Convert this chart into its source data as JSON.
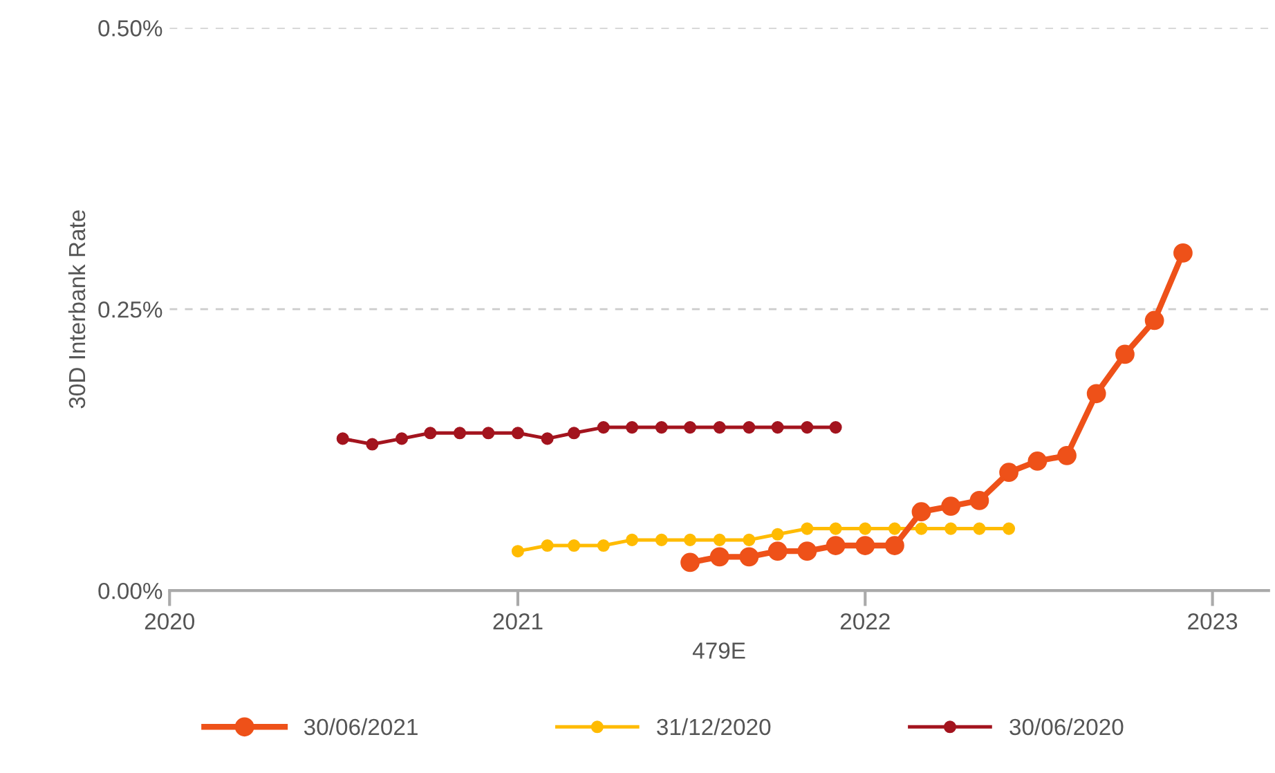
{
  "chart_data": {
    "type": "line",
    "xlabel": "479E",
    "ylabel": "30D Interbank Rate",
    "xlim": [
      "2020",
      "2023-03"
    ],
    "xticks": [
      "2020",
      "2021",
      "2022",
      "2023"
    ],
    "ylim": [
      0,
      0.5
    ],
    "yticks": [
      {
        "value": 0,
        "label": "0.00%"
      },
      {
        "value": 0.25,
        "label": "0.25%"
      },
      {
        "value": 0.5,
        "label": "0.50%"
      }
    ],
    "grid": "y",
    "legend": "bottom",
    "marker": "circle",
    "line_style": "solid",
    "series": [
      {
        "name": "30/06/2021",
        "color": "#ee5119",
        "x": [
          "2021-07",
          "2021-08",
          "2021-09",
          "2021-10",
          "2021-11",
          "2021-12",
          "2022-01",
          "2022-02",
          "2022-03",
          "2022-04",
          "2022-05",
          "2022-06",
          "2022-07",
          "2022-08",
          "2022-09",
          "2022-10",
          "2022-11",
          "2022-12"
        ],
        "values": [
          0.025,
          0.03,
          0.03,
          0.035,
          0.035,
          0.04,
          0.04,
          0.04,
          0.07,
          0.075,
          0.08,
          0.105,
          0.115,
          0.12,
          0.175,
          0.21,
          0.24,
          0.3
        ]
      },
      {
        "name": "31/12/2020",
        "color": "#ffbb00",
        "x": [
          "2021-01",
          "2021-02",
          "2021-03",
          "2021-04",
          "2021-05",
          "2021-06",
          "2021-07",
          "2021-08",
          "2021-09",
          "2021-10",
          "2021-11",
          "2021-12",
          "2022-01",
          "2022-02",
          "2022-03",
          "2022-04",
          "2022-05",
          "2022-06"
        ],
        "values": [
          0.035,
          0.04,
          0.04,
          0.04,
          0.045,
          0.045,
          0.045,
          0.045,
          0.045,
          0.05,
          0.055,
          0.055,
          0.055,
          0.055,
          0.055,
          0.055,
          0.055,
          0.055
        ]
      },
      {
        "name": "30/06/2020",
        "color": "#a3141e",
        "x": [
          "2020-07",
          "2020-08",
          "2020-09",
          "2020-10",
          "2020-11",
          "2020-12",
          "2021-01",
          "2021-02",
          "2021-03",
          "2021-04",
          "2021-05",
          "2021-06",
          "2021-07",
          "2021-08",
          "2021-09",
          "2021-10",
          "2021-11",
          "2021-12"
        ],
        "values": [
          0.135,
          0.13,
          0.135,
          0.14,
          0.14,
          0.14,
          0.14,
          0.135,
          0.14,
          0.145,
          0.145,
          0.145,
          0.145,
          0.145,
          0.145,
          0.145,
          0.145,
          0.145
        ]
      }
    ]
  }
}
